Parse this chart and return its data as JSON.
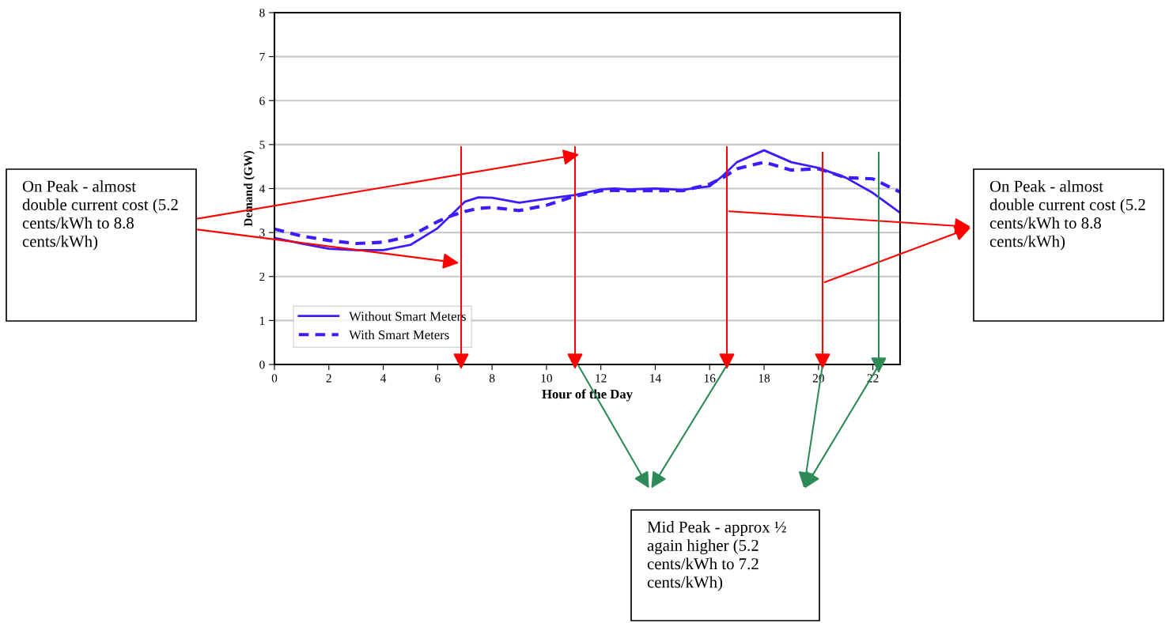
{
  "chart_data": {
    "type": "line",
    "xlabel": "Hour of the Day",
    "ylabel": "Demand (GW)",
    "xlim": [
      0,
      23
    ],
    "xticks": [
      0,
      2,
      4,
      6,
      8,
      10,
      12,
      14,
      16,
      18,
      20,
      22
    ],
    "ylim": [
      0,
      8
    ],
    "yticks": [
      0,
      1,
      2,
      3,
      4,
      5,
      6,
      7,
      8
    ],
    "grid": "y",
    "legend": "bottom left",
    "marker": "none",
    "x": [
      0,
      1,
      2,
      3,
      4,
      5,
      6,
      6.5,
      7,
      7.5,
      8,
      9,
      10,
      11,
      12,
      12.5,
      13,
      14,
      15,
      16,
      16.5,
      17,
      18,
      19,
      20,
      21,
      22,
      23
    ],
    "series": [
      {
        "name": "Without Smart Meters",
        "color": "#3a1cff",
        "line_style": "solid",
        "values": [
          2.88,
          2.75,
          2.63,
          2.6,
          2.6,
          2.72,
          3.1,
          3.4,
          3.7,
          3.8,
          3.79,
          3.68,
          3.77,
          3.85,
          3.98,
          4.0,
          3.98,
          4.0,
          3.97,
          4.05,
          4.3,
          4.6,
          4.87,
          4.6,
          4.47,
          4.25,
          3.9,
          3.45
        ]
      },
      {
        "name": "With Smart Meters",
        "color": "#3a1cff",
        "line_style": "dashed",
        "values": [
          3.08,
          2.92,
          2.82,
          2.75,
          2.78,
          2.92,
          3.25,
          3.38,
          3.48,
          3.55,
          3.57,
          3.5,
          3.62,
          3.82,
          3.95,
          3.96,
          3.95,
          3.95,
          3.95,
          4.1,
          4.25,
          4.45,
          4.6,
          4.42,
          4.45,
          4.25,
          4.22,
          3.92
        ]
      }
    ],
    "annotations": [
      "On Peak - almost double current cost (5.2 cents/kWh to 8.8 cents/kWh)",
      "On Peak - almost double current cost (5.2 cents/kWh to 8.8 cents/kWh)",
      "Mid Peak - approx ½ again higher (5.2 cents/kWh to 7.2 cents/kWh)"
    ]
  }
}
